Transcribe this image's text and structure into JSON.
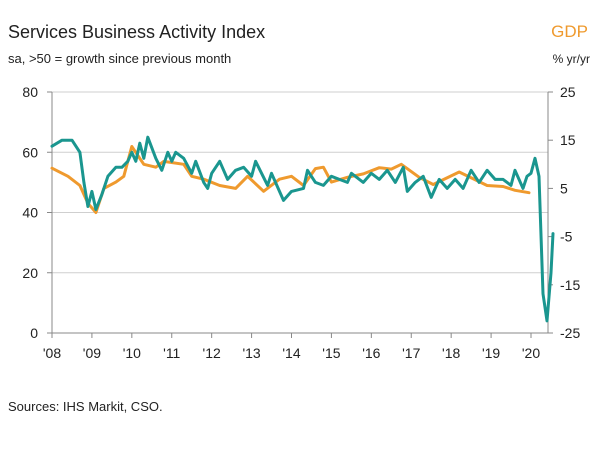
{
  "chart_data": {
    "type": "line",
    "title": "Services Business Activity Index",
    "subtitle": "sa, >50 = growth since previous month",
    "right_axis_title": "GDP",
    "right_axis_unit": "% yr/yr",
    "source": "Sources: IHS Markit, CSO.",
    "x_ticks": [
      "'08",
      "'09",
      "'10",
      "'11",
      "'12",
      "'13",
      "'14",
      "'15",
      "'16",
      "'17",
      "'18",
      "'19",
      "'20"
    ],
    "x_range": [
      2008,
      2020.6
    ],
    "left_axis": {
      "range": [
        0,
        80
      ],
      "ticks": [
        0,
        20,
        40,
        60,
        80
      ]
    },
    "right_axis": {
      "range": [
        -25,
        25
      ],
      "ticks": [
        -25,
        -15,
        -5,
        5,
        15,
        25
      ]
    },
    "grid": true,
    "colors": {
      "services": "#1a968f",
      "gdp": "#ef9a2e"
    },
    "series": [
      {
        "axis": "left",
        "color": "#1a968f",
        "x": [
          2008.0,
          2008.25,
          2008.5,
          2008.7,
          2008.8,
          2008.9,
          2009.0,
          2009.1,
          2009.25,
          2009.4,
          2009.6,
          2009.75,
          2009.9,
          2010.0,
          2010.1,
          2010.2,
          2010.3,
          2010.4,
          2010.6,
          2010.75,
          2010.9,
          2011.0,
          2011.1,
          2011.3,
          2011.5,
          2011.6,
          2011.8,
          2011.9,
          2012.0,
          2012.2,
          2012.4,
          2012.6,
          2012.8,
          2013.0,
          2013.1,
          2013.4,
          2013.5,
          2013.7,
          2013.8,
          2014.0,
          2014.3,
          2014.4,
          2014.6,
          2014.8,
          2015.0,
          2015.2,
          2015.4,
          2015.5,
          2015.8,
          2016.0,
          2016.2,
          2016.4,
          2016.6,
          2016.8,
          2016.9,
          2017.1,
          2017.3,
          2017.5,
          2017.7,
          2017.9,
          2018.1,
          2018.3,
          2018.5,
          2018.7,
          2018.9,
          2019.1,
          2019.3,
          2019.5,
          2019.6,
          2019.8,
          2019.9,
          2020.0,
          2020.1,
          2020.2,
          2020.3,
          2020.4,
          2020.5,
          2020.55
        ],
        "values": [
          62,
          64,
          64,
          60,
          50,
          42,
          47,
          41,
          46,
          52,
          55,
          55,
          57,
          60,
          57,
          63,
          58,
          65,
          58,
          54,
          60,
          57,
          60,
          58,
          53,
          57,
          50,
          48,
          53,
          57,
          51,
          54,
          55,
          52,
          57,
          49,
          53,
          47,
          44,
          47,
          48,
          54,
          50,
          49,
          52,
          51,
          50,
          53,
          50,
          53,
          51,
          54,
          50,
          55,
          47,
          50,
          52,
          45,
          51,
          48,
          51,
          48,
          54,
          50,
          54,
          51,
          51,
          49,
          54,
          48,
          52,
          53,
          58,
          52,
          13,
          4,
          20,
          33
        ]
      },
      {
        "axis": "right",
        "color": "#ef9a2e",
        "x": [
          2008.0,
          2008.4,
          2008.7,
          2008.9,
          2009.1,
          2009.3,
          2009.6,
          2009.8,
          2010.0,
          2010.3,
          2010.6,
          2010.8,
          2011.3,
          2011.5,
          2011.8,
          2012.2,
          2012.6,
          2012.9,
          2013.3,
          2013.7,
          2014.0,
          2014.3,
          2014.6,
          2014.8,
          2015.0,
          2015.4,
          2015.8,
          2016.2,
          2016.5,
          2016.75,
          2017.2,
          2017.55,
          2018.2,
          2018.9,
          2019.3,
          2019.6,
          2019.95
        ],
        "values": [
          9.2,
          7.5,
          5.6,
          1.9,
          0,
          5,
          6.3,
          7.5,
          13.7,
          10,
          9.4,
          10.6,
          10,
          7.5,
          6.9,
          5.6,
          5,
          7.5,
          4.4,
          6.9,
          7.5,
          5.6,
          9.1,
          9.4,
          6.3,
          7.3,
          8,
          9.3,
          9,
          10,
          7.3,
          5.8,
          8.4,
          5.6,
          5.4,
          4.6,
          4.1
        ]
      }
    ]
  }
}
